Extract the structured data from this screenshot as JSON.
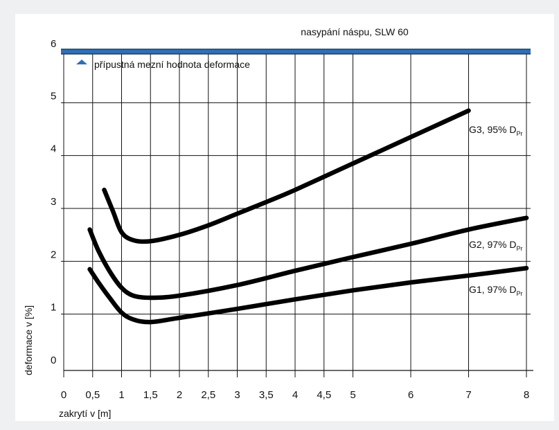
{
  "chart_data": {
    "type": "line",
    "title": "",
    "xlabel": "zakrytí v [m]",
    "ylabel": "deformace v [%]",
    "xlim": [
      0,
      8
    ],
    "ylim": [
      0,
      6
    ],
    "x_ticks": [
      "0",
      "0,5",
      "1",
      "1,5",
      "2",
      "2,5",
      "3",
      "3,5",
      "4",
      "4,5",
      "5",
      "6",
      "7",
      "8"
    ],
    "x_tick_values": [
      0,
      0.5,
      1,
      1.5,
      2,
      2.5,
      3,
      3.5,
      4,
      4.5,
      5,
      6,
      7,
      8
    ],
    "y_ticks": [
      "0",
      "1",
      "2",
      "3",
      "4",
      "5",
      "6"
    ],
    "y_tick_values": [
      0,
      1,
      2,
      3,
      4,
      5,
      6
    ],
    "grid": true,
    "reference_line": {
      "y": 5.9,
      "label": "nasypání náspu, SLW 60",
      "legend": "přípustná mezní hodnota deformace",
      "color": "#2f6fb5",
      "dark_color": "#0d2d52"
    },
    "series": [
      {
        "name": "G3, 95%",
        "label_main": "G3, 95%",
        "label_sub": "Pr",
        "label_d": "D",
        "x": [
          0.7,
          0.85,
          1.0,
          1.2,
          1.5,
          2.0,
          2.5,
          3.0,
          3.5,
          4.0,
          5.0,
          6.0,
          7.0
        ],
        "y": [
          3.35,
          2.95,
          2.55,
          2.4,
          2.38,
          2.5,
          2.68,
          2.9,
          3.12,
          3.35,
          3.85,
          4.35,
          4.85
        ]
      },
      {
        "name": "G2, 97%",
        "label_main": "G2, 97%",
        "label_sub": "Pr",
        "label_d": "D",
        "x": [
          0.45,
          0.6,
          0.8,
          1.0,
          1.2,
          1.5,
          2.0,
          3.0,
          4.0,
          5.0,
          6.0,
          7.0,
          8.0
        ],
        "y": [
          2.6,
          2.2,
          1.8,
          1.5,
          1.35,
          1.31,
          1.35,
          1.55,
          1.82,
          2.08,
          2.33,
          2.6,
          2.82
        ]
      },
      {
        "name": "G1, 97%",
        "label_main": "G1, 97%",
        "label_sub": "Pr",
        "label_d": "D",
        "x": [
          0.45,
          0.6,
          0.8,
          1.0,
          1.2,
          1.5,
          2.0,
          3.0,
          4.0,
          5.0,
          6.0,
          7.0,
          8.0
        ],
        "y": [
          1.85,
          1.6,
          1.3,
          1.03,
          0.9,
          0.85,
          0.93,
          1.1,
          1.28,
          1.45,
          1.6,
          1.73,
          1.87
        ]
      }
    ]
  }
}
